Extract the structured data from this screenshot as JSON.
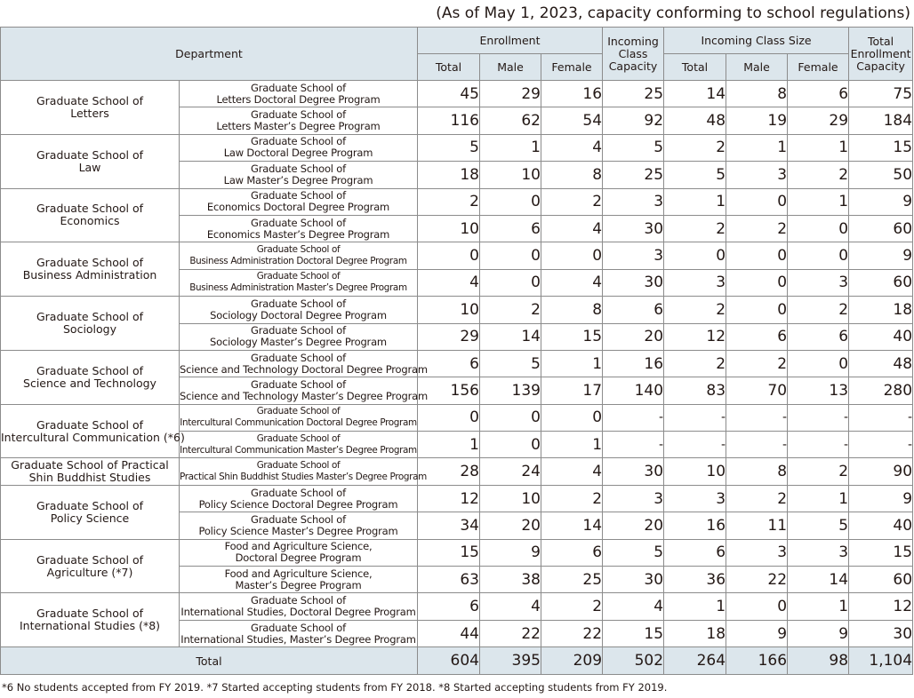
{
  "as_of": "(As of May 1, 2023, capacity conforming to school regulations)",
  "headers": {
    "department": "Department",
    "enrollment": "Enrollment",
    "incoming_capacity": [
      "Incoming",
      "Class",
      "Capacity"
    ],
    "incoming_class_size": "Incoming Class Size",
    "total_capacity": [
      "Total",
      "Enrollment",
      "Capacity"
    ],
    "total": "Total",
    "male": "Male",
    "female": "Female"
  },
  "schools": [
    {
      "name": [
        "Graduate School of",
        "Letters"
      ],
      "programs": [
        {
          "name": [
            "Graduate School of",
            "Letters Doctoral Degree Program"
          ],
          "values": [
            "45",
            "29",
            "16",
            "25",
            "14",
            "8",
            "6",
            "75"
          ]
        },
        {
          "name": [
            "Graduate School of",
            "Letters Master’s Degree Program"
          ],
          "values": [
            "116",
            "62",
            "54",
            "92",
            "48",
            "19",
            "29",
            "184"
          ]
        }
      ]
    },
    {
      "name": [
        "Graduate School of",
        "Law"
      ],
      "programs": [
        {
          "name": [
            "Graduate School of",
            "Law Doctoral Degree Program"
          ],
          "values": [
            "5",
            "1",
            "4",
            "5",
            "2",
            "1",
            "1",
            "15"
          ]
        },
        {
          "name": [
            "Graduate School of",
            "Law Master’s Degree Program"
          ],
          "values": [
            "18",
            "10",
            "8",
            "25",
            "5",
            "3",
            "2",
            "50"
          ]
        }
      ]
    },
    {
      "name": [
        "Graduate School of",
        "Economics"
      ],
      "programs": [
        {
          "name": [
            "Graduate School of",
            "Economics Doctoral Degree Program"
          ],
          "values": [
            "2",
            "0",
            "2",
            "3",
            "1",
            "0",
            "1",
            "9"
          ]
        },
        {
          "name": [
            "Graduate School of",
            "Economics Master’s Degree Program"
          ],
          "values": [
            "10",
            "6",
            "4",
            "30",
            "2",
            "2",
            "0",
            "60"
          ]
        }
      ]
    },
    {
      "name": [
        "Graduate School of",
        "Business Administration"
      ],
      "programs": [
        {
          "name": [
            "Graduate School of",
            "Business Administration Doctoral Degree Program"
          ],
          "values": [
            "0",
            "0",
            "0",
            "3",
            "0",
            "0",
            "0",
            "9"
          ]
        },
        {
          "name": [
            "Graduate School of",
            "Business Administration Master’s Degree Program"
          ],
          "values": [
            "4",
            "0",
            "4",
            "30",
            "3",
            "0",
            "3",
            "60"
          ]
        }
      ]
    },
    {
      "name": [
        "Graduate School of",
        "Sociology"
      ],
      "programs": [
        {
          "name": [
            "Graduate School of",
            "Sociology Doctoral Degree Program"
          ],
          "values": [
            "10",
            "2",
            "8",
            "6",
            "2",
            "0",
            "2",
            "18"
          ]
        },
        {
          "name": [
            "Graduate School of",
            "Sociology Master’s Degree Program"
          ],
          "values": [
            "29",
            "14",
            "15",
            "20",
            "12",
            "6",
            "6",
            "40"
          ]
        }
      ]
    },
    {
      "name": [
        "Graduate School of",
        "Science and Technology"
      ],
      "programs": [
        {
          "name": [
            "Graduate School of",
            "Science and Technology Doctoral Degree Program"
          ],
          "values": [
            "6",
            "5",
            "1",
            "16",
            "2",
            "2",
            "0",
            "48"
          ]
        },
        {
          "name": [
            "Graduate School of",
            "Science and Technology Master’s Degree Program"
          ],
          "values": [
            "156",
            "139",
            "17",
            "140",
            "83",
            "70",
            "13",
            "280"
          ]
        }
      ]
    },
    {
      "name": [
        "Graduate School of",
        "Intercultural Communication (*6)"
      ],
      "programs": [
        {
          "name": [
            "Graduate School of",
            "Intercultural Communication Doctoral Degree Program"
          ],
          "values": [
            "0",
            "0",
            "0",
            "-",
            "-",
            "-",
            "-",
            "-"
          ]
        },
        {
          "name": [
            "Graduate School of",
            "Intercultural Communication Master’s Degree Program"
          ],
          "values": [
            "1",
            "0",
            "1",
            "-",
            "-",
            "-",
            "-",
            "-"
          ]
        }
      ]
    },
    {
      "name": [
        "Graduate School of Practical",
        "Shin Buddhist Studies"
      ],
      "programs": [
        {
          "name": [
            "Graduate School of",
            "Practical Shin Buddhist Studies Master’s Degree Program"
          ],
          "values": [
            "28",
            "24",
            "4",
            "30",
            "10",
            "8",
            "2",
            "90"
          ]
        }
      ]
    },
    {
      "name": [
        "Graduate School of",
        "Policy Science"
      ],
      "programs": [
        {
          "name": [
            "Graduate School of",
            "Policy Science Doctoral Degree Program"
          ],
          "values": [
            "12",
            "10",
            "2",
            "3",
            "3",
            "2",
            "1",
            "9"
          ]
        },
        {
          "name": [
            "Graduate School of",
            "Policy Science Master’s Degree Program"
          ],
          "values": [
            "34",
            "20",
            "14",
            "20",
            "16",
            "11",
            "5",
            "40"
          ]
        }
      ]
    },
    {
      "name": [
        "Graduate School of",
        "Agriculture (*7)"
      ],
      "programs": [
        {
          "name": [
            "Food and Agriculture Science,",
            "Doctoral Degree Program"
          ],
          "values": [
            "15",
            "9",
            "6",
            "5",
            "6",
            "3",
            "3",
            "15"
          ]
        },
        {
          "name": [
            "Food and Agriculture Science,",
            "Master’s Degree Program"
          ],
          "values": [
            "63",
            "38",
            "25",
            "30",
            "36",
            "22",
            "14",
            "60"
          ]
        }
      ]
    },
    {
      "name": [
        "Graduate School of",
        "International Studies (*8)"
      ],
      "programs": [
        {
          "name": [
            "Graduate School of",
            "International Studies, Doctoral Degree Program"
          ],
          "values": [
            "6",
            "4",
            "2",
            "4",
            "1",
            "0",
            "1",
            "12"
          ]
        },
        {
          "name": [
            "Graduate School of",
            "International Studies, Master’s Degree Program"
          ],
          "values": [
            "44",
            "22",
            "22",
            "15",
            "18",
            "9",
            "9",
            "30"
          ]
        }
      ]
    }
  ],
  "total": {
    "label": "Total",
    "values": [
      "604",
      "395",
      "209",
      "502",
      "264",
      "166",
      "98",
      "1,104"
    ]
  },
  "notes": "*6 No students accepted from FY 2019.   *7 Started accepting students from FY 2018.   *8 Started accepting students from FY 2019."
}
